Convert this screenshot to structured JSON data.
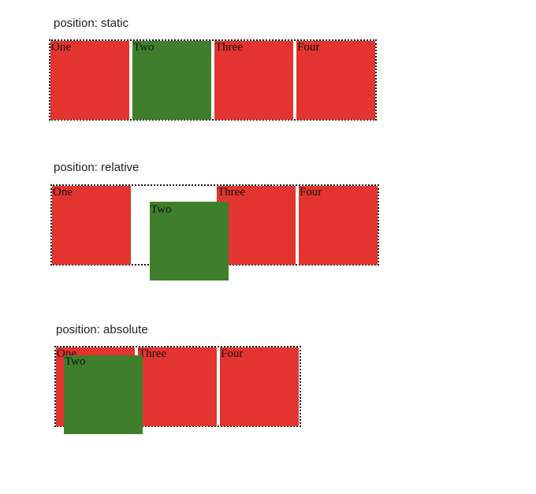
{
  "colors": {
    "red_box": "#e3342f",
    "green_box": "#3f7f2b",
    "border": "#111111"
  },
  "sections": [
    {
      "label": "position: static",
      "boxes": [
        "One",
        "Two",
        "Three",
        "Four"
      ]
    },
    {
      "label": "position: relative",
      "boxes": [
        "One",
        "Two",
        "Three",
        "Four"
      ]
    },
    {
      "label": "position: absolute",
      "boxes": [
        "One",
        "Two",
        "Three",
        "Four"
      ]
    }
  ]
}
